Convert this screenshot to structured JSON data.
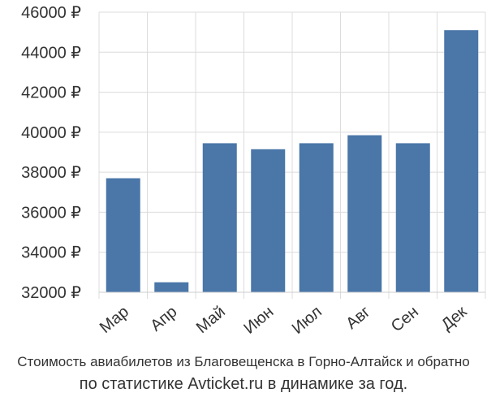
{
  "chart_data": {
    "type": "bar",
    "categories": [
      "Мар",
      "Апр",
      "Май",
      "Июн",
      "Июл",
      "Авг",
      "Сен",
      "Дек"
    ],
    "values": [
      37700,
      32500,
      39450,
      39150,
      39450,
      39850,
      39450,
      45100
    ],
    "ylim": [
      32000,
      46000
    ],
    "yticks": [
      32000,
      34000,
      36000,
      38000,
      40000,
      42000,
      44000,
      46000
    ],
    "ytick_suffix": " ₽",
    "grid": true,
    "bar_color": "#4a76a8",
    "grid_color": "#dcdcdc",
    "title": "",
    "xlabel": "",
    "ylabel": ""
  },
  "caption": {
    "line1": "Стоимость авиабилетов из Благовещенска в Горно-Алтайск и обратно",
    "line2": "по статистике Avticket.ru в динамике за год."
  }
}
